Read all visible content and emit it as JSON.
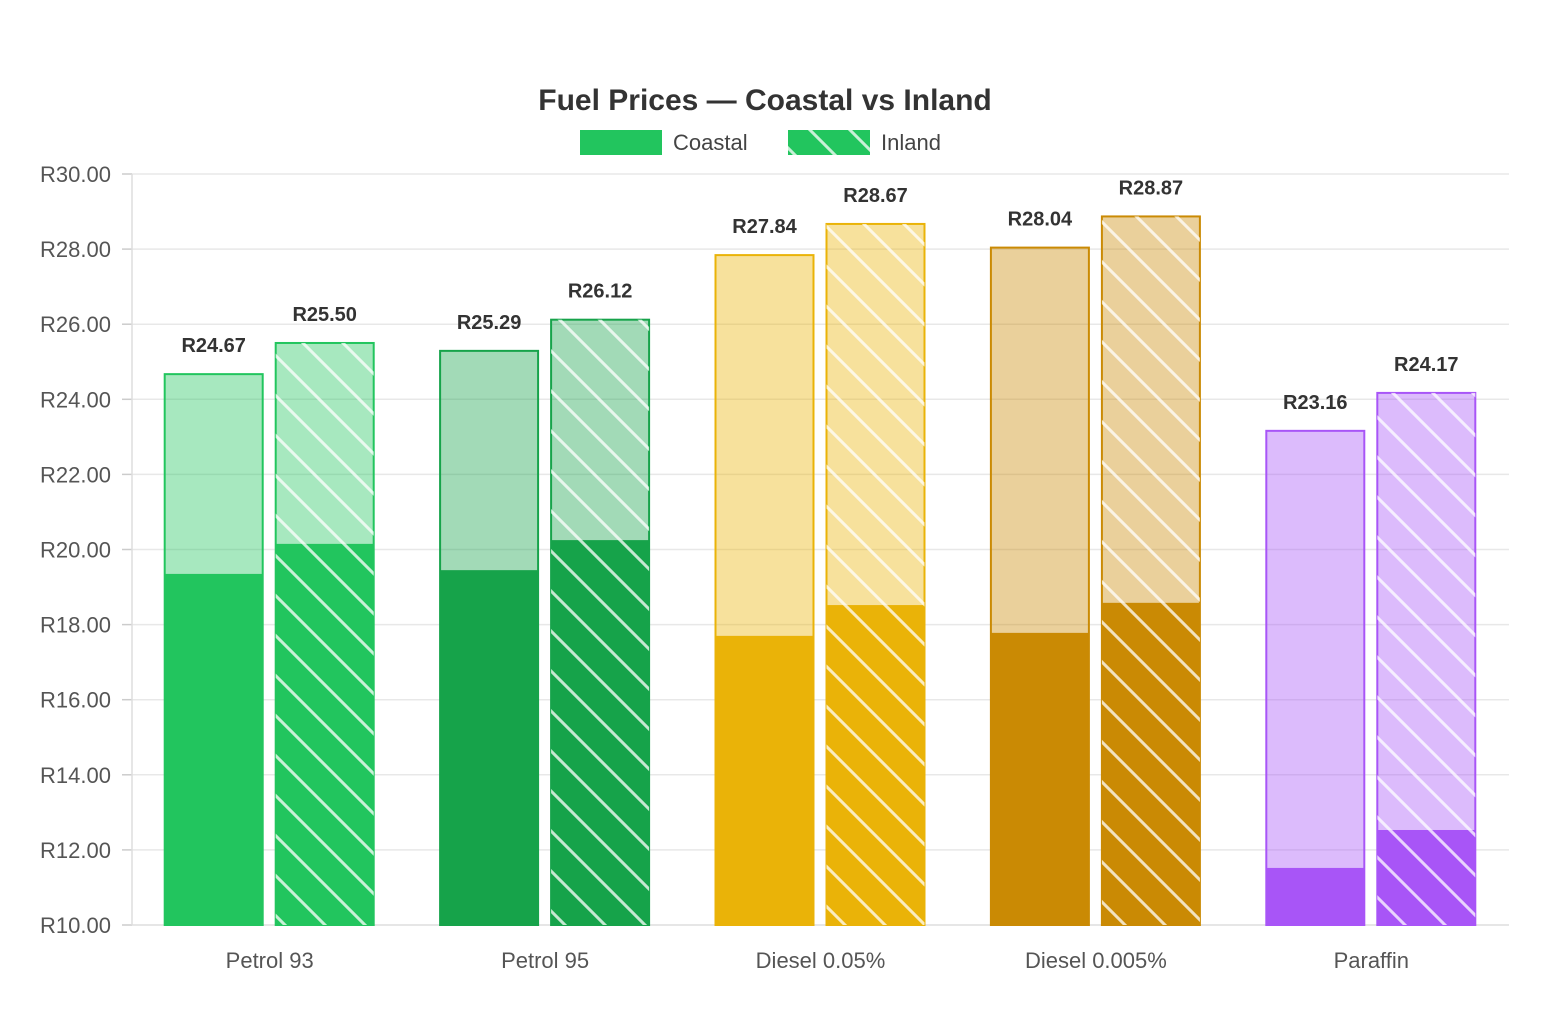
{
  "chart_data": {
    "type": "bar",
    "title": "Fuel Prices — Coastal vs Inland",
    "xlabel": "",
    "ylabel": "",
    "ylim": [
      10,
      30
    ],
    "yticks": [
      "R10.00",
      "R12.00",
      "R14.00",
      "R16.00",
      "R18.00",
      "R20.00",
      "R22.00",
      "R24.00",
      "R26.00",
      "R28.00",
      "R30.00"
    ],
    "grid": true,
    "legend_position": "top-center",
    "categories": [
      "Petrol 93",
      "Petrol 95",
      "Diesel 0.05%",
      "Diesel 0.005%",
      "Paraffin"
    ],
    "category_colors": [
      "#22c55e",
      "#16a34a",
      "#eab308",
      "#ca8a04",
      "#a855f7"
    ],
    "series": [
      {
        "name": "Coastal",
        "pattern": "solid",
        "values": [
          24.67,
          25.29,
          27.84,
          28.04,
          23.16
        ],
        "labels": [
          "R24.67",
          "R25.29",
          "R27.84",
          "R28.04",
          "R23.16"
        ],
        "lower_segment": [
          19.35,
          19.45,
          17.7,
          17.78,
          11.52
        ]
      },
      {
        "name": "Inland",
        "pattern": "diagonal-hatch",
        "values": [
          25.5,
          26.12,
          28.67,
          28.87,
          24.17
        ],
        "labels": [
          "R25.50",
          "R26.12",
          "R28.67",
          "R28.87",
          "R24.17"
        ],
        "lower_segment": [
          20.15,
          20.25,
          18.52,
          18.58,
          12.53
        ]
      }
    ]
  }
}
